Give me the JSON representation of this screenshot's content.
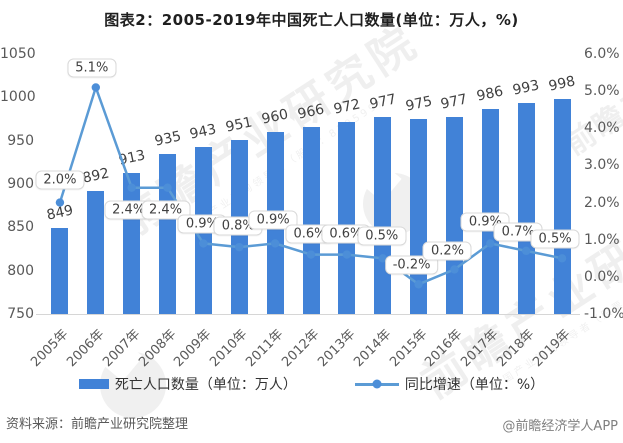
{
  "title": "图表2：2005-2019年中国死亡人口数量(单位：万人，%)",
  "chart_data": {
    "type": "bar",
    "title": "图表2：2005-2019年中国死亡人口数量(单位：万人，%)",
    "categories": [
      "2005年",
      "2006年",
      "2007年",
      "2008年",
      "2009年",
      "2010年",
      "2011年",
      "2012年",
      "2013年",
      "2014年",
      "2015年",
      "2016年",
      "2017年",
      "2018年",
      "2019年"
    ],
    "series": [
      {
        "name": "死亡人口数量（单位：万人）",
        "type": "bar",
        "axis": "left",
        "values": [
          849,
          892,
          913,
          935,
          943,
          951,
          960,
          966,
          972,
          977,
          975,
          977,
          986,
          993,
          998
        ]
      },
      {
        "name": "同比增速（单位：%）",
        "type": "line",
        "axis": "right",
        "values": [
          2.0,
          5.1,
          2.4,
          2.4,
          0.9,
          0.8,
          0.9,
          0.6,
          0.6,
          0.5,
          -0.2,
          0.2,
          0.9,
          0.7,
          0.5
        ],
        "labels": [
          "2.0%",
          "5.1%",
          "2.4%",
          "2.4%",
          "0.9%",
          "0.8%",
          "0.9%",
          "0.6%",
          "0.6%",
          "0.5%",
          "-0.2%",
          "0.2%",
          "0.9%",
          "0.7%",
          "0.5%"
        ]
      }
    ],
    "left_axis": {
      "min": 750,
      "max": 1050,
      "ticks": [
        "1050",
        "1000",
        "950",
        "900",
        "850",
        "800",
        "750"
      ]
    },
    "right_axis": {
      "min": -1.0,
      "max": 6.0,
      "ticks": [
        "6.0%",
        "5.0%",
        "4.0%",
        "3.0%",
        "2.0%",
        "1.0%",
        "0.0%",
        "-1.0%"
      ]
    },
    "grid": false,
    "legend_position": "bottom"
  },
  "footer": {
    "source": "资料来源：前瞻产业研究院整理",
    "credit": "@前瞻经济学人APP"
  },
  "watermark": {
    "text": "前瞻产业研究院",
    "subtext": "中国产业咨询领导者（股票：839599）"
  },
  "colors": {
    "bar": "#4182D7",
    "line": "#5B9BD5",
    "marker": "#4C8ED8",
    "axis_text": "#595959",
    "label_text": "#404040",
    "axis_line": "#D6D6D6"
  }
}
